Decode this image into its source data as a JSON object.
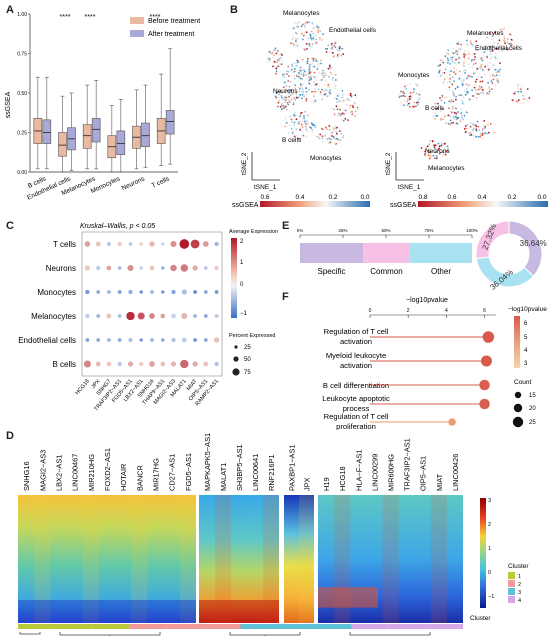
{
  "panel_letters": {
    "a": "A",
    "b": "B",
    "c": "C",
    "d": "D",
    "e": "E",
    "f": "F"
  },
  "panel_a": {
    "ylabel": "ssGSEA",
    "legend": [
      {
        "label": "Before treatment",
        "color": "#e9b9a2"
      },
      {
        "label": "After treatment",
        "color": "#a8a9d6"
      }
    ],
    "significance": [
      "****",
      "****",
      "****"
    ],
    "chart_data": {
      "type": "box",
      "categories": [
        "B cells",
        "Endothelial cells",
        "Melanocytes",
        "Monocytes",
        "Neurons",
        "T cells"
      ],
      "ylim": [
        0,
        1.0
      ],
      "yticks": [
        "0.00",
        "0.25",
        "0.50",
        "0.75",
        "1.00"
      ],
      "series": [
        {
          "name": "Before treatment",
          "boxes": [
            {
              "min": 0.02,
              "q1": 0.18,
              "median": 0.26,
              "q3": 0.34,
              "max": 0.6
            },
            {
              "min": 0.0,
              "q1": 0.1,
              "median": 0.17,
              "q3": 0.25,
              "max": 0.48
            },
            {
              "min": 0.02,
              "q1": 0.15,
              "median": 0.23,
              "q3": 0.3,
              "max": 0.55
            },
            {
              "min": 0.0,
              "q1": 0.09,
              "median": 0.16,
              "q3": 0.23,
              "max": 0.42
            },
            {
              "min": 0.02,
              "q1": 0.15,
              "median": 0.22,
              "q3": 0.29,
              "max": 0.52
            },
            {
              "min": 0.04,
              "q1": 0.18,
              "median": 0.26,
              "q3": 0.34,
              "max": 0.62
            }
          ]
        },
        {
          "name": "After treatment",
          "boxes": [
            {
              "min": 0.02,
              "q1": 0.18,
              "median": 0.25,
              "q3": 0.33,
              "max": 0.6
            },
            {
              "min": 0.01,
              "q1": 0.14,
              "median": 0.21,
              "q3": 0.28,
              "max": 0.5
            },
            {
              "min": 0.02,
              "q1": 0.19,
              "median": 0.27,
              "q3": 0.34,
              "max": 0.58
            },
            {
              "min": 0.0,
              "q1": 0.11,
              "median": 0.18,
              "q3": 0.26,
              "max": 0.46
            },
            {
              "min": 0.03,
              "q1": 0.16,
              "median": 0.23,
              "q3": 0.31,
              "max": 0.55
            },
            {
              "min": 0.05,
              "q1": 0.24,
              "median": 0.32,
              "q3": 0.39,
              "max": 0.78
            }
          ]
        }
      ]
    }
  },
  "panel_b": {
    "left": {
      "labels": [
        "Melanocytes",
        "Endothelial cells",
        "Neurons",
        "B cells",
        "Monocytes"
      ],
      "axis_x": "tSNE_1",
      "axis_y": "tSNE_2",
      "cbar_label": "ssGSEA",
      "cbar_ticks": [
        "0.6",
        "0.4",
        "0.2",
        "0.0"
      ]
    },
    "right": {
      "labels": [
        "Melanocytes",
        "Endothelial cells",
        "Monocytes",
        "B cells",
        "Neurons",
        "Melanocytes"
      ],
      "axis_x": "tSNE_1",
      "axis_y": "tSNE_2",
      "cbar_label": "ssGSEA",
      "cbar_ticks": [
        "0.8",
        "0.6",
        "0.4",
        "0.2",
        "0.0"
      ]
    }
  },
  "panel_c": {
    "title": "Kruskal–Wallis, p < 0.05",
    "rows": [
      "T cells",
      "Neurons",
      "Monocytes",
      "Melanocytes",
      "Endothelial cells",
      "B cells"
    ],
    "cols": [
      "HCG18",
      "JPX",
      "SNHG7",
      "TRAF3IP2−AS1",
      "FGD5−AS1",
      "LBX2−AS1",
      "SNHG16",
      "THAP9−AS1",
      "MAGI2−AS3",
      "MALAT1",
      "MIAT",
      "OIP5−AS1",
      "RAMP2−AS1"
    ],
    "legend_expr_title": "Average Expression",
    "legend_expr_ticks": [
      "2",
      "1",
      "0",
      "−1"
    ],
    "legend_size_title": "Percent Expressed",
    "legend_size_ticks": [
      "25",
      "50",
      "75"
    ],
    "chart_data": {
      "type": "dot",
      "expression": [
        [
          0.6,
          0.3,
          -0.4,
          0.2,
          -0.3,
          0.1,
          0.4,
          -0.2,
          0.8,
          2.0,
          1.6,
          0.7,
          -0.5
        ],
        [
          0.2,
          -0.3,
          0.6,
          -0.4,
          0.8,
          -0.2,
          0.3,
          -0.6,
          0.9,
          1.0,
          0.5,
          -0.3,
          0.2
        ],
        [
          -0.8,
          -0.6,
          -0.5,
          -0.7,
          -0.6,
          -0.9,
          -0.5,
          -0.8,
          -0.7,
          -0.4,
          -0.9,
          -0.6,
          -0.8
        ],
        [
          -0.3,
          -0.5,
          0.3,
          -0.4,
          1.8,
          1.4,
          0.9,
          0.6,
          -0.2,
          0.4,
          -0.5,
          -0.6,
          -0.3
        ],
        [
          -0.7,
          -0.6,
          -0.5,
          -0.6,
          -0.4,
          -0.8,
          -0.5,
          -0.7,
          -0.4,
          -0.3,
          -0.8,
          -0.6,
          0.3
        ],
        [
          0.9,
          0.4,
          0.2,
          -0.3,
          0.5,
          0.2,
          0.6,
          0.3,
          0.4,
          1.2,
          0.5,
          0.3,
          -0.4
        ]
      ],
      "percent": [
        [
          40,
          30,
          20,
          25,
          20,
          20,
          35,
          15,
          45,
          85,
          75,
          40,
          25
        ],
        [
          35,
          25,
          30,
          20,
          45,
          20,
          30,
          15,
          50,
          60,
          35,
          20,
          25
        ],
        [
          25,
          20,
          20,
          20,
          25,
          15,
          20,
          15,
          25,
          35,
          20,
          20,
          20
        ],
        [
          25,
          20,
          30,
          20,
          70,
          55,
          40,
          30,
          30,
          45,
          20,
          20,
          20
        ],
        [
          20,
          20,
          20,
          20,
          25,
          15,
          20,
          15,
          25,
          30,
          20,
          20,
          35
        ],
        [
          55,
          30,
          30,
          25,
          35,
          25,
          40,
          30,
          35,
          70,
          35,
          30,
          25
        ]
      ]
    }
  },
  "panel_e": {
    "axis_ticks": [
      "0%",
      "25%",
      "50%",
      "75%",
      "100%"
    ],
    "categories": [
      {
        "label": "Specific",
        "value": 36.64,
        "color": "#c8b9e3"
      },
      {
        "label": "Common",
        "value": 27.32,
        "color": "#f7c1e6"
      },
      {
        "label": "Other",
        "value": 36.04,
        "color": "#a8e2f0"
      }
    ],
    "donut_labels": [
      "36.64%",
      "27.32%",
      "36.04%"
    ]
  },
  "panel_f": {
    "xlabel": "−log10pvalue",
    "xticks": [
      "0",
      "2",
      "4",
      "6"
    ],
    "color_title": "−log10pvalue",
    "color_ticks": [
      "6",
      "5",
      "4",
      "3"
    ],
    "size_title": "Count",
    "size_ticks": [
      "15",
      "20",
      "25"
    ],
    "chart_data": {
      "type": "lollipop",
      "terms": [
        "Regulation of T cell activation",
        "Myeloid leukocyte activation",
        "B cell differentiation",
        "Leukocyte apoptotic process",
        "Regulation of T cell proliferation"
      ],
      "values": [
        6.2,
        6.1,
        6.0,
        6.0,
        4.3
      ],
      "counts": [
        26,
        25,
        24,
        24,
        18
      ],
      "xlim": [
        0,
        6.6
      ]
    }
  },
  "panel_d": {
    "genes_1": [
      "SNHG16",
      "MAGI2−AS3",
      "LBX2−AS1",
      "LINC00467",
      "MIR210HG",
      "FOXD2−AS1",
      "HOTAIR",
      "BANCR",
      "MIR17HG",
      "CD27−AS1",
      "FGD5−AS1"
    ],
    "genes_2": [
      "MAPKAPK5−AS1",
      "MALAT1",
      "SH3BP5−AS1",
      "LINC00641",
      "RNF216P1"
    ],
    "genes_3": [
      "PAXBP1−AS1",
      "JPX"
    ],
    "genes_4": [
      "H19",
      "HCG18",
      "HLA−F−AS1",
      "LINC00299",
      "MIR600HG",
      "TRAF3IP2−AS1",
      "OIP5−AS1",
      "MIAT",
      "LINC00426"
    ],
    "cbar_ticks": [
      "3",
      "2",
      "1",
      "0",
      "−1",
      "−2",
      "−3"
    ],
    "cluster_title": "Cluster",
    "cluster_axis_label": "Cluster",
    "clusters": [
      {
        "label": "1",
        "color": "#b8c93a"
      },
      {
        "label": "2",
        "color": "#f29999"
      },
      {
        "label": "3",
        "color": "#5fc0d8"
      },
      {
        "label": "4",
        "color": "#d6a8e8"
      }
    ]
  }
}
